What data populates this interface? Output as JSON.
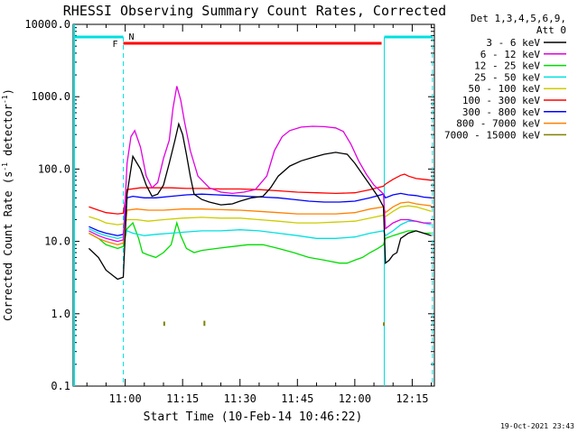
{
  "chart_data": {
    "type": "line",
    "title": "RHESSI Observing Summary Count Rates, Corrected",
    "xlabel": "Start Time (10-Feb-14 10:46:22)",
    "ylabel": "Corrected Count Rate (s",
    "ylabel_sup": "-1",
    "ylabel_tail": " detector",
    "ylabel_sup2": "-1",
    "ylabel_close": ")",
    "yscale": "log",
    "ylim": [
      0.1,
      10000
    ],
    "yticks": [
      {
        "value": 0.1,
        "label": "0.1"
      },
      {
        "value": 1,
        "label": "1.0"
      },
      {
        "value": 10,
        "label": "10.0"
      },
      {
        "value": 100,
        "label": "100.0"
      },
      {
        "value": 1000,
        "label": "1000.0"
      },
      {
        "value": 10000,
        "label": "10000.0"
      }
    ],
    "xlim_min": [
      46.4,
      140.8
    ],
    "xticks": [
      {
        "value": 60,
        "label": "11:00"
      },
      {
        "value": 75,
        "label": "11:15"
      },
      {
        "value": 90,
        "label": "11:30"
      },
      {
        "value": 105,
        "label": "11:45"
      },
      {
        "value": 120,
        "label": "12:00"
      },
      {
        "value": 135,
        "label": "12:15"
      }
    ],
    "legend": {
      "position": "top-right",
      "header": [
        "Det 1,3,4,5,6,9,",
        "Att 0"
      ]
    },
    "annotations": {
      "flag_F": "F",
      "flag_N": "N",
      "footer_date": "19-Oct-2021 23:43"
    },
    "series": [
      {
        "name": "3 - 6 keV",
        "color": "#000000",
        "key": "s1"
      },
      {
        "name": "6 - 12 keV",
        "color": "#e000e0",
        "key": "s2"
      },
      {
        "name": "12 - 25 keV",
        "color": "#00dd00",
        "key": "s3"
      },
      {
        "name": "25 - 50 keV",
        "color": "#00e0e0",
        "key": "s4"
      },
      {
        "name": "50 - 100 keV",
        "color": "#cccc00",
        "key": "s5"
      },
      {
        "name": "100 - 300 keV",
        "color": "#ff0000",
        "key": "s6"
      },
      {
        "name": "300 - 800 keV",
        "color": "#0000ff",
        "key": "s7"
      },
      {
        "name": "800 - 7000 keV",
        "color": "#ff8000",
        "key": "s8"
      },
      {
        "name": "7000 - 15000 keV",
        "color": "#808000",
        "key": "s9"
      }
    ],
    "data": {
      "s1": [
        [
          50.5,
          8
        ],
        [
          53,
          6
        ],
        [
          55,
          4
        ],
        [
          58,
          3
        ],
        [
          59.5,
          3.2
        ],
        [
          60.5,
          45
        ],
        [
          62,
          150
        ],
        [
          64,
          100
        ],
        [
          65.5,
          60
        ],
        [
          67,
          42
        ],
        [
          68.5,
          45
        ],
        [
          70,
          60
        ],
        [
          71.5,
          120
        ],
        [
          73,
          250
        ],
        [
          74,
          420
        ],
        [
          75,
          300
        ],
        [
          76,
          160
        ],
        [
          77,
          80
        ],
        [
          78,
          45
        ],
        [
          80,
          38
        ],
        [
          82,
          35
        ],
        [
          85,
          32
        ],
        [
          88,
          33
        ],
        [
          90,
          36
        ],
        [
          93,
          40
        ],
        [
          96,
          42
        ],
        [
          98,
          55
        ],
        [
          100,
          80
        ],
        [
          103,
          110
        ],
        [
          106,
          130
        ],
        [
          109,
          145
        ],
        [
          112,
          160
        ],
        [
          115,
          170
        ],
        [
          118,
          160
        ],
        [
          120,
          120
        ],
        [
          122,
          85
        ],
        [
          124,
          60
        ],
        [
          126,
          42
        ],
        [
          127.5,
          30
        ],
        [
          128,
          5
        ],
        [
          129,
          5.5
        ],
        [
          130,
          6.5
        ],
        [
          131,
          7
        ],
        [
          132,
          11
        ],
        [
          134,
          13
        ],
        [
          136,
          14
        ],
        [
          138,
          13
        ],
        [
          140,
          12
        ]
      ],
      "s2": [
        [
          50.5,
          14
        ],
        [
          53,
          12
        ],
        [
          55,
          11
        ],
        [
          58,
          10
        ],
        [
          59.5,
          10.5
        ],
        [
          60.5,
          120
        ],
        [
          61.5,
          280
        ],
        [
          62.5,
          340
        ],
        [
          64,
          200
        ],
        [
          65.5,
          80
        ],
        [
          67,
          55
        ],
        [
          68.5,
          65
        ],
        [
          70,
          140
        ],
        [
          71.5,
          250
        ],
        [
          72.5,
          700
        ],
        [
          73.5,
          1400
        ],
        [
          74.5,
          900
        ],
        [
          75.5,
          450
        ],
        [
          77,
          180
        ],
        [
          79,
          80
        ],
        [
          82,
          55
        ],
        [
          85,
          48
        ],
        [
          88,
          46
        ],
        [
          91,
          48
        ],
        [
          94,
          52
        ],
        [
          97,
          80
        ],
        [
          99,
          180
        ],
        [
          101,
          280
        ],
        [
          103,
          340
        ],
        [
          106,
          380
        ],
        [
          109,
          390
        ],
        [
          112,
          385
        ],
        [
          115,
          370
        ],
        [
          117,
          330
        ],
        [
          119,
          220
        ],
        [
          121,
          130
        ],
        [
          123,
          85
        ],
        [
          125,
          60
        ],
        [
          127,
          48
        ],
        [
          127.5,
          45
        ],
        [
          128,
          15
        ],
        [
          130,
          18
        ],
        [
          132,
          20
        ],
        [
          134,
          20
        ],
        [
          136,
          19
        ],
        [
          138,
          18
        ],
        [
          140,
          18
        ]
      ],
      "s3": [
        [
          50.5,
          13
        ],
        [
          53,
          11
        ],
        [
          55,
          9
        ],
        [
          58,
          8
        ],
        [
          59.5,
          8.5
        ],
        [
          60.5,
          15
        ],
        [
          62,
          18
        ],
        [
          63.5,
          11
        ],
        [
          64.5,
          7
        ],
        [
          66,
          6.5
        ],
        [
          68,
          6
        ],
        [
          70,
          7
        ],
        [
          72,
          9
        ],
        [
          73.5,
          18
        ],
        [
          74.5,
          12
        ],
        [
          76,
          8
        ],
        [
          78,
          7
        ],
        [
          80,
          7.5
        ],
        [
          84,
          8
        ],
        [
          88,
          8.5
        ],
        [
          92,
          9
        ],
        [
          96,
          9
        ],
        [
          100,
          8
        ],
        [
          104,
          7
        ],
        [
          108,
          6
        ],
        [
          112,
          5.5
        ],
        [
          116,
          5
        ],
        [
          118,
          5
        ],
        [
          120,
          5.5
        ],
        [
          122,
          6
        ],
        [
          124,
          7
        ],
        [
          126,
          8
        ],
        [
          127.5,
          9
        ],
        [
          128,
          11
        ],
        [
          130,
          12
        ],
        [
          132,
          13
        ],
        [
          134,
          14
        ],
        [
          136,
          14
        ],
        [
          138,
          13
        ],
        [
          140,
          13
        ]
      ],
      "s4": [
        [
          50.5,
          15
        ],
        [
          53,
          13
        ],
        [
          55,
          12
        ],
        [
          58,
          11
        ],
        [
          59.5,
          11.5
        ],
        [
          60.5,
          14
        ],
        [
          62,
          13
        ],
        [
          65,
          12
        ],
        [
          68,
          12.5
        ],
        [
          72,
          13
        ],
        [
          76,
          13.5
        ],
        [
          80,
          14
        ],
        [
          85,
          14
        ],
        [
          90,
          14.5
        ],
        [
          95,
          14
        ],
        [
          100,
          13
        ],
        [
          105,
          12
        ],
        [
          110,
          11
        ],
        [
          115,
          11
        ],
        [
          120,
          11.5
        ],
        [
          124,
          13
        ],
        [
          127.5,
          14
        ],
        [
          128,
          12
        ],
        [
          130,
          14
        ],
        [
          132,
          17
        ],
        [
          134,
          19
        ],
        [
          136,
          19
        ],
        [
          138,
          18
        ],
        [
          140,
          17
        ]
      ],
      "s5": [
        [
          50.5,
          22
        ],
        [
          53,
          20
        ],
        [
          55,
          18
        ],
        [
          58,
          17
        ],
        [
          59.5,
          17.5
        ],
        [
          60.5,
          20
        ],
        [
          63,
          20
        ],
        [
          66,
          19
        ],
        [
          70,
          20
        ],
        [
          75,
          21
        ],
        [
          80,
          21.5
        ],
        [
          85,
          21
        ],
        [
          90,
          21
        ],
        [
          95,
          20
        ],
        [
          100,
          19
        ],
        [
          105,
          18
        ],
        [
          110,
          18
        ],
        [
          115,
          18.5
        ],
        [
          120,
          19
        ],
        [
          124,
          21
        ],
        [
          127.5,
          23
        ],
        [
          128,
          22
        ],
        [
          130,
          26
        ],
        [
          132,
          30
        ],
        [
          134,
          31
        ],
        [
          136,
          30
        ],
        [
          138,
          28
        ],
        [
          140,
          26
        ]
      ],
      "s6": [
        [
          50.5,
          30
        ],
        [
          53,
          27
        ],
        [
          55,
          25
        ],
        [
          58,
          24
        ],
        [
          59.5,
          24.5
        ],
        [
          60.5,
          52
        ],
        [
          64,
          55
        ],
        [
          68,
          55
        ],
        [
          72,
          55
        ],
        [
          76,
          54
        ],
        [
          80,
          54
        ],
        [
          85,
          53
        ],
        [
          90,
          53
        ],
        [
          95,
          52
        ],
        [
          100,
          50
        ],
        [
          105,
          48
        ],
        [
          110,
          47
        ],
        [
          115,
          46
        ],
        [
          120,
          47
        ],
        [
          124,
          52
        ],
        [
          127.5,
          58
        ],
        [
          128,
          62
        ],
        [
          130,
          72
        ],
        [
          132,
          82
        ],
        [
          133,
          85
        ],
        [
          134,
          80
        ],
        [
          136,
          74
        ],
        [
          138,
          72
        ],
        [
          140,
          70
        ]
      ],
      "s7": [
        [
          50.5,
          16
        ],
        [
          53,
          14
        ],
        [
          55,
          13
        ],
        [
          58,
          12
        ],
        [
          59.5,
          12.5
        ],
        [
          60.5,
          40
        ],
        [
          62,
          42
        ],
        [
          65,
          40
        ],
        [
          68,
          40
        ],
        [
          72,
          42
        ],
        [
          76,
          44
        ],
        [
          80,
          45
        ],
        [
          84,
          44
        ],
        [
          88,
          43
        ],
        [
          92,
          42
        ],
        [
          96,
          41
        ],
        [
          100,
          40
        ],
        [
          104,
          38
        ],
        [
          108,
          36
        ],
        [
          112,
          35
        ],
        [
          116,
          35
        ],
        [
          120,
          36
        ],
        [
          124,
          40
        ],
        [
          127.5,
          45
        ],
        [
          128,
          40
        ],
        [
          130,
          44
        ],
        [
          132,
          46
        ],
        [
          134,
          44
        ],
        [
          136,
          43
        ],
        [
          138,
          41
        ],
        [
          140,
          40
        ]
      ],
      "s8": [
        [
          50.5,
          13
        ],
        [
          53,
          11
        ],
        [
          55,
          10
        ],
        [
          58,
          9
        ],
        [
          59.5,
          9.5
        ],
        [
          60.5,
          27
        ],
        [
          63,
          28
        ],
        [
          66,
          27
        ],
        [
          70,
          27
        ],
        [
          75,
          28
        ],
        [
          80,
          28
        ],
        [
          85,
          27.5
        ],
        [
          90,
          27
        ],
        [
          95,
          26
        ],
        [
          100,
          25
        ],
        [
          105,
          24
        ],
        [
          110,
          24
        ],
        [
          115,
          24
        ],
        [
          120,
          25
        ],
        [
          124,
          28
        ],
        [
          127.5,
          30
        ],
        [
          128,
          25
        ],
        [
          130,
          30
        ],
        [
          132,
          34
        ],
        [
          134,
          35
        ],
        [
          136,
          33
        ],
        [
          138,
          32
        ],
        [
          140,
          31
        ]
      ],
      "s9": [
        [
          70,
          0.68
        ],
        [
          70.2,
          0.78
        ],
        [
          70.4,
          0.68
        ],
        [
          80.5,
          0.68
        ],
        [
          80.7,
          0.8
        ],
        [
          80.9,
          0.68
        ],
        [
          127.4,
          0.68
        ],
        [
          127.6,
          0.76
        ],
        [
          127.8,
          0.68
        ]
      ]
    }
  }
}
